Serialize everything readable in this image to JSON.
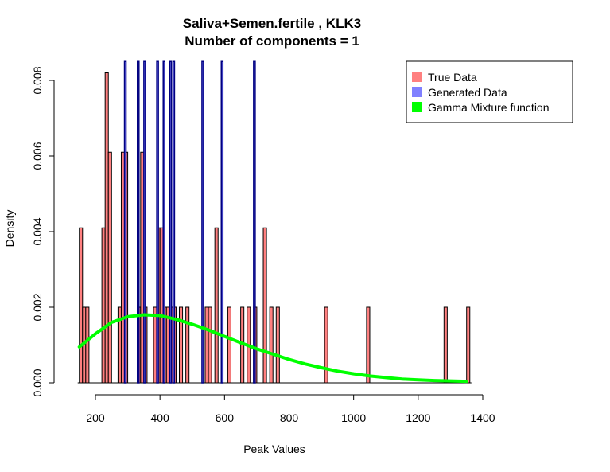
{
  "chart_data": {
    "type": "histogram",
    "title": "Saliva+Semen.fertile , KLK3",
    "subtitle": "Number of components =  1",
    "xlabel": "Peak Values",
    "ylabel": "Density",
    "xlim": [
      120,
      1400
    ],
    "ylim": [
      0,
      0.0085
    ],
    "x_ticks": [
      "200",
      "400",
      "600",
      "800",
      "1000",
      "1200",
      "1400"
    ],
    "y_ticks": [
      "0.000",
      "0.002",
      "0.004",
      "0.006",
      "0.008"
    ],
    "bin_width": 10,
    "legend": {
      "position": "top-right",
      "entries": [
        {
          "label": "True Data",
          "color": "#ff8080"
        },
        {
          "label": "Generated Data",
          "color": "#8080ff"
        },
        {
          "label": "Gamma Mixture function",
          "color": "#00ff00"
        }
      ]
    },
    "series": [
      {
        "name": "True Data",
        "color": "#ff8080",
        "bins": [
          {
            "x": 150,
            "y": 0.0041
          },
          {
            "x": 160,
            "y": 0.002
          },
          {
            "x": 170,
            "y": 0.002
          },
          {
            "x": 220,
            "y": 0.0041
          },
          {
            "x": 230,
            "y": 0.0082
          },
          {
            "x": 240,
            "y": 0.0061
          },
          {
            "x": 270,
            "y": 0.002
          },
          {
            "x": 280,
            "y": 0.0061
          },
          {
            "x": 290,
            "y": 0.0061
          },
          {
            "x": 330,
            "y": 0.002
          },
          {
            "x": 340,
            "y": 0.0061
          },
          {
            "x": 350,
            "y": 0.002
          },
          {
            "x": 380,
            "y": 0.002
          },
          {
            "x": 390,
            "y": 0.0041
          },
          {
            "x": 400,
            "y": 0.0041
          },
          {
            "x": 410,
            "y": 0.002
          },
          {
            "x": 420,
            "y": 0.002
          },
          {
            "x": 430,
            "y": 0.002
          },
          {
            "x": 440,
            "y": 0.002
          },
          {
            "x": 460,
            "y": 0.002
          },
          {
            "x": 480,
            "y": 0.002
          },
          {
            "x": 540,
            "y": 0.002
          },
          {
            "x": 550,
            "y": 0.002
          },
          {
            "x": 570,
            "y": 0.0041
          },
          {
            "x": 610,
            "y": 0.002
          },
          {
            "x": 650,
            "y": 0.002
          },
          {
            "x": 670,
            "y": 0.002
          },
          {
            "x": 690,
            "y": 0.002
          },
          {
            "x": 720,
            "y": 0.0041
          },
          {
            "x": 740,
            "y": 0.002
          },
          {
            "x": 760,
            "y": 0.002
          },
          {
            "x": 910,
            "y": 0.002
          },
          {
            "x": 1040,
            "y": 0.002
          },
          {
            "x": 1280,
            "y": 0.002
          },
          {
            "x": 1350,
            "y": 0.002
          }
        ]
      },
      {
        "name": "Generated Data",
        "color": "#8080ff",
        "bins": [
          {
            "x": 290,
            "y": 0.0085
          },
          {
            "x": 330,
            "y": 0.0085
          },
          {
            "x": 350,
            "y": 0.0085
          },
          {
            "x": 390,
            "y": 0.0085
          },
          {
            "x": 410,
            "y": 0.0085
          },
          {
            "x": 430,
            "y": 0.0085
          },
          {
            "x": 440,
            "y": 0.0085
          },
          {
            "x": 530,
            "y": 0.0085
          },
          {
            "x": 590,
            "y": 0.0085
          },
          {
            "x": 690,
            "y": 0.0085
          }
        ]
      },
      {
        "name": "Gamma Mixture function",
        "color": "#00ff00",
        "type": "line",
        "x": [
          150,
          200,
          250,
          300,
          350,
          400,
          450,
          500,
          550,
          600,
          650,
          700,
          750,
          800,
          850,
          900,
          950,
          1000,
          1050,
          1100,
          1150,
          1200,
          1250,
          1300,
          1350
        ],
        "y": [
          0.00095,
          0.0013,
          0.0016,
          0.00175,
          0.0018,
          0.00178,
          0.00168,
          0.00155,
          0.0014,
          0.00123,
          0.00106,
          0.0009,
          0.00076,
          0.00062,
          0.0005,
          0.0004,
          0.00031,
          0.00024,
          0.00018,
          0.00014,
          0.0001,
          8e-05,
          6e-05,
          5e-05,
          4e-05
        ]
      }
    ]
  }
}
